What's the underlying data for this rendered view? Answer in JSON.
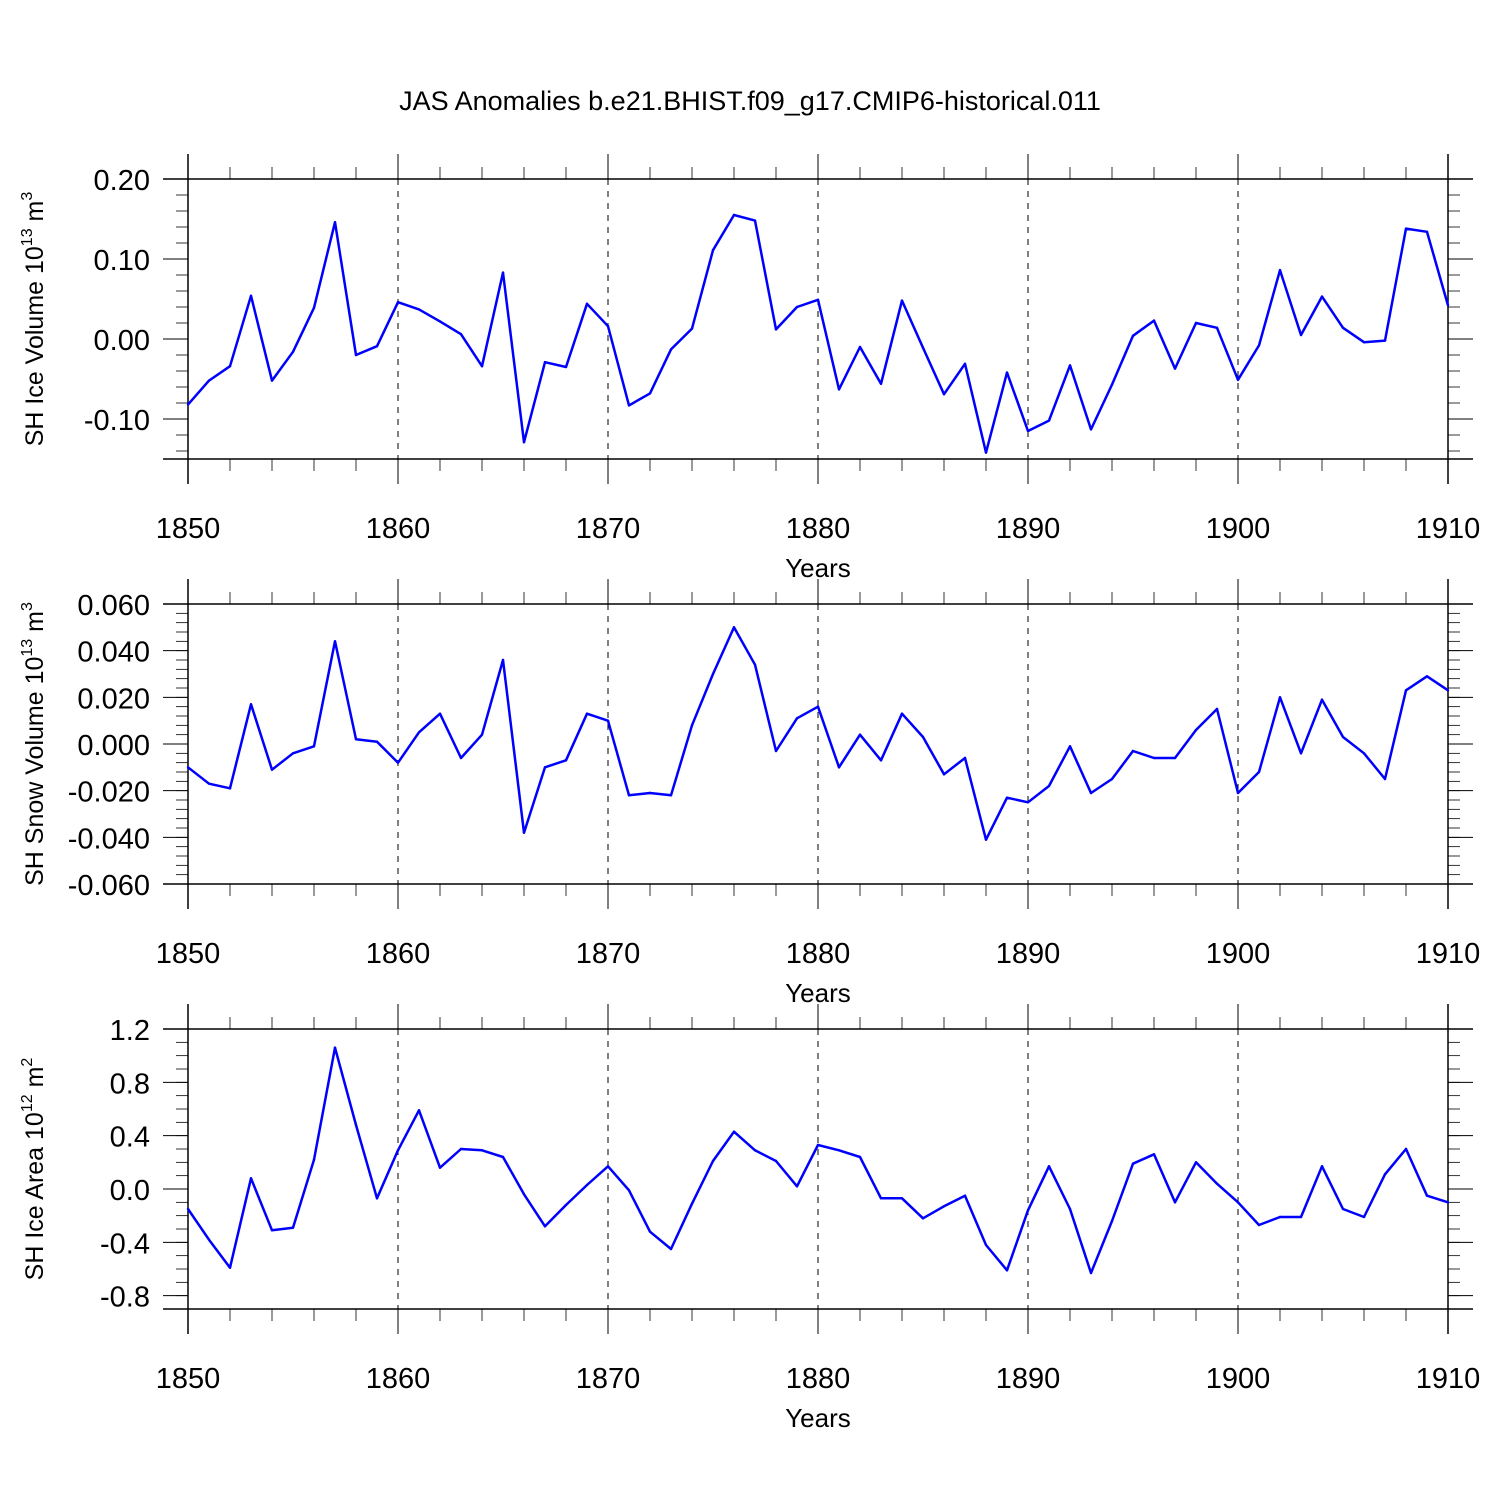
{
  "figure": {
    "title": "JAS Anomalies b.e21.BHIST.f09_g17.CMIP6-historical.011",
    "line_color": "#0000ff"
  },
  "chart_data": [
    {
      "type": "line",
      "ylabel": "SH Ice Volume 10",
      "ylabel_exp": "13",
      "ylabel_unit": " m",
      "ylabel_unit_exp": "3",
      "xlabel": "Years",
      "xlim": [
        1850,
        1910
      ],
      "ylim": [
        -0.15,
        0.2
      ],
      "yticks": [
        0.2,
        0.1,
        0.0,
        -0.1
      ],
      "yticklabels": [
        "0.20",
        "0.10",
        "0.00",
        "-0.10"
      ],
      "yminor": 0.02,
      "xticks": [
        1850,
        1860,
        1870,
        1880,
        1890,
        1900,
        1910
      ],
      "xticklabels": [
        "1850",
        "1860",
        "1870",
        "1880",
        "1890",
        "1900",
        "1910"
      ],
      "x_start": 1850,
      "values": [
        -0.082,
        -0.052,
        -0.034,
        0.054,
        -0.052,
        -0.016,
        0.039,
        0.146,
        -0.02,
        -0.009,
        0.046,
        0.037,
        0.022,
        0.006,
        -0.034,
        0.083,
        -0.129,
        -0.029,
        -0.035,
        0.044,
        0.016,
        -0.083,
        -0.068,
        -0.013,
        0.013,
        0.111,
        0.155,
        0.148,
        0.012,
        0.04,
        0.049,
        -0.063,
        -0.01,
        -0.056,
        0.048,
        -0.011,
        -0.069,
        -0.031,
        -0.142,
        -0.042,
        -0.115,
        -0.102,
        -0.033,
        -0.113,
        -0.057,
        0.004,
        0.023,
        -0.037,
        0.02,
        0.014,
        -0.051,
        -0.008,
        0.086,
        0.005,
        0.053,
        0.014,
        -0.004,
        -0.002,
        0.138,
        0.134,
        0.042
      ]
    },
    {
      "type": "line",
      "ylabel": "SH Snow Volume 10",
      "ylabel_exp": "13",
      "ylabel_unit": " m",
      "ylabel_unit_exp": "3",
      "xlabel": "Years",
      "xlim": [
        1850,
        1910
      ],
      "ylim": [
        -0.06,
        0.06
      ],
      "yticks": [
        0.06,
        0.04,
        0.02,
        0.0,
        -0.02,
        -0.04,
        -0.06
      ],
      "yticklabels": [
        "0.060",
        "0.040",
        "0.020",
        "0.000",
        "-0.020",
        "-0.040",
        "-0.060"
      ],
      "yminor": 0.004,
      "xticks": [
        1850,
        1860,
        1870,
        1880,
        1890,
        1900,
        1910
      ],
      "xticklabels": [
        "1850",
        "1860",
        "1870",
        "1880",
        "1890",
        "1900",
        "1910"
      ],
      "x_start": 1850,
      "values": [
        -0.01,
        -0.017,
        -0.019,
        0.017,
        -0.011,
        -0.004,
        -0.001,
        0.044,
        0.002,
        0.001,
        -0.008,
        0.005,
        0.013,
        -0.006,
        0.004,
        0.036,
        -0.038,
        -0.01,
        -0.007,
        0.013,
        0.01,
        -0.022,
        -0.021,
        -0.022,
        0.008,
        0.03,
        0.05,
        0.034,
        -0.003,
        0.011,
        0.016,
        -0.01,
        0.004,
        -0.007,
        0.013,
        0.003,
        -0.013,
        -0.006,
        -0.041,
        -0.023,
        -0.025,
        -0.018,
        -0.001,
        -0.021,
        -0.015,
        -0.003,
        -0.006,
        -0.006,
        0.006,
        0.015,
        -0.021,
        -0.012,
        0.02,
        -0.004,
        0.019,
        0.003,
        -0.004,
        -0.015,
        0.023,
        0.029,
        0.023
      ]
    },
    {
      "type": "line",
      "ylabel": "SH Ice Area 10",
      "ylabel_exp": "12",
      "ylabel_unit": " m",
      "ylabel_unit_exp": "2",
      "xlabel": "Years",
      "xlim": [
        1850,
        1910
      ],
      "ylim": [
        -0.9,
        1.2
      ],
      "yticks": [
        1.2,
        0.8,
        0.4,
        0.0,
        -0.4,
        -0.8
      ],
      "yticklabels": [
        "1.2",
        "0.8",
        "0.4",
        "0.0",
        "-0.4",
        "-0.8"
      ],
      "yminor": 0.1,
      "xticks": [
        1850,
        1860,
        1870,
        1880,
        1890,
        1900,
        1910
      ],
      "xticklabels": [
        "1850",
        "1860",
        "1870",
        "1880",
        "1890",
        "1900",
        "1910"
      ],
      "x_start": 1850,
      "values": [
        -0.15,
        -0.38,
        -0.59,
        0.08,
        -0.31,
        -0.29,
        0.22,
        1.06,
        0.48,
        -0.07,
        0.29,
        0.59,
        0.16,
        0.3,
        0.29,
        0.24,
        -0.04,
        -0.28,
        -0.12,
        0.03,
        0.17,
        -0.01,
        -0.32,
        -0.45,
        -0.11,
        0.21,
        0.43,
        0.29,
        0.21,
        0.02,
        0.33,
        0.29,
        0.24,
        -0.07,
        -0.07,
        -0.22,
        -0.13,
        -0.05,
        -0.42,
        -0.61,
        -0.16,
        0.17,
        -0.15,
        -0.63,
        -0.24,
        0.19,
        0.26,
        -0.1,
        0.2,
        0.04,
        -0.1,
        -0.27,
        -0.21,
        -0.21,
        0.17,
        -0.15,
        -0.21,
        0.11,
        0.3,
        -0.05,
        -0.1
      ]
    }
  ]
}
